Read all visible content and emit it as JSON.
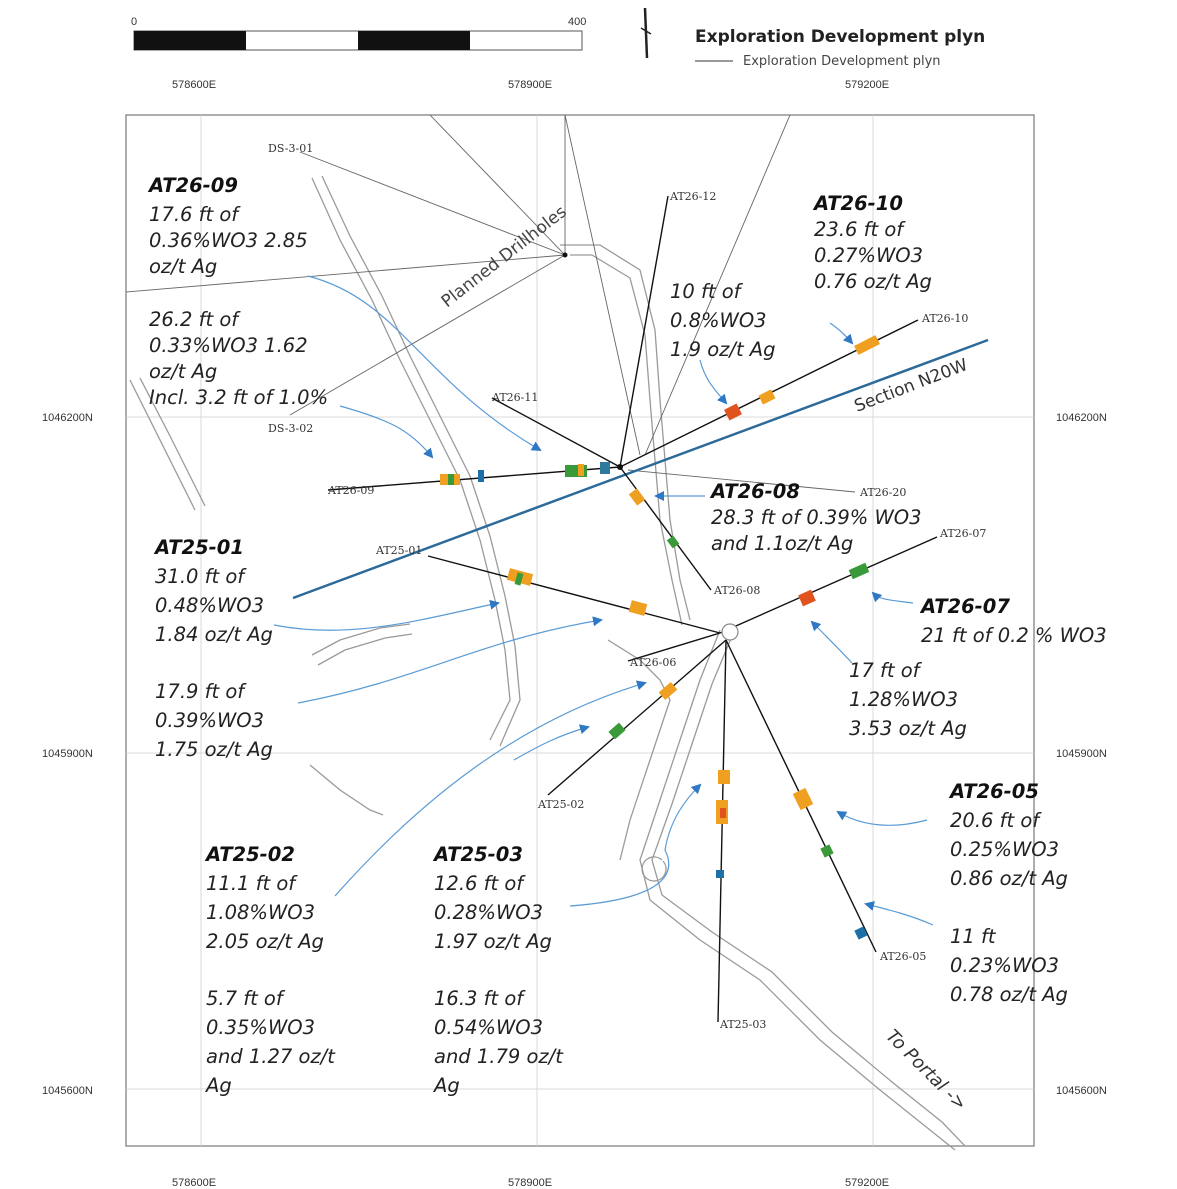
{
  "scale_bar": {
    "start": "0",
    "end": "400"
  },
  "legend": {
    "title": "Exploration Development plyn",
    "item": "Exploration Development plyn"
  },
  "coords": {
    "x_top": [
      "578600E",
      "578900E",
      "579200E"
    ],
    "x_bottom": [
      "578600E",
      "578900E",
      "579200E"
    ],
    "y_left": [
      "1046200N",
      "1045900N",
      "1045600N"
    ],
    "y_right": [
      "1046200N",
      "1045900N",
      "1045600N"
    ]
  },
  "map_labels": {
    "planned": "Planned Drillholes",
    "section": "Section N20W",
    "portal": "To Portal ->"
  },
  "holes": {
    "ds301": "DS-3-01",
    "ds302": "DS-3-02",
    "at2609": "AT26-09",
    "at2611": "AT26-11",
    "at2612": "AT26-12",
    "at2610": "AT26-10",
    "at2620": "AT26-20",
    "at2608": "AT26-08",
    "at2607": "AT26-07",
    "at2501": "AT25-01",
    "at2606": "AT26-06",
    "at2502": "AT25-02",
    "at2503": "AT25-03",
    "at2605": "AT26-05"
  },
  "annotations": {
    "at2609": {
      "title": "AT26-09",
      "lines": [
        "17.6 ft of",
        "0.36%WO3 2.85",
        "oz/t Ag"
      ]
    },
    "at2609b": {
      "lines": [
        "26.2 ft of",
        "0.33%WO3 1.62",
        "oz/t Ag",
        "Incl. 3.2 ft of 1.0%"
      ]
    },
    "at2612": {
      "lines": [
        "10 ft of",
        "0.8%WO3",
        "1.9 oz/t Ag"
      ]
    },
    "at2610": {
      "title": "AT26-10",
      "lines": [
        "23.6 ft of",
        "0.27%WO3",
        "0.76 oz/t Ag"
      ]
    },
    "at2608": {
      "title": "AT26-08",
      "lines": [
        "28.3 ft of 0.39% WO3",
        "and 1.1oz/t Ag"
      ]
    },
    "at2501": {
      "title": "AT25-01",
      "lines": [
        "31.0 ft of",
        "0.48%WO3",
        "1.84 oz/t Ag"
      ]
    },
    "at2501b": {
      "lines": [
        "17.9 ft of",
        "0.39%WO3",
        "1.75 oz/t Ag"
      ]
    },
    "at2607": {
      "title": "AT26-07",
      "lines": [
        "21 ft of 0.2 % WO3"
      ]
    },
    "at2607b": {
      "lines": [
        "17 ft of",
        "1.28%WO3",
        "3.53 oz/t Ag"
      ]
    },
    "at2605": {
      "title": "AT26-05",
      "lines": [
        "20.6 ft of",
        "0.25%WO3",
        "0.86 oz/t Ag"
      ]
    },
    "at2605b": {
      "lines": [
        "11 ft",
        "0.23%WO3",
        "0.78 oz/t Ag"
      ]
    },
    "at2502": {
      "title": "AT25-02",
      "lines": [
        "11.1 ft of",
        "1.08%WO3",
        "2.05 oz/t Ag",
        "",
        "5.7 ft of",
        "0.35%WO3",
        "and 1.27 oz/t",
        "Ag"
      ]
    },
    "at2503": {
      "title": "AT25-03",
      "lines": [
        "12.6 ft of",
        "0.28%WO3",
        "1.97 oz/t Ag",
        "",
        "16.3 ft of",
        "0.54%WO3",
        "and 1.79 oz/t",
        "Ag"
      ]
    }
  },
  "colors": {
    "section_line": "#2c6a9a",
    "arrow": "#3b7fc4",
    "workings": "#9a9a9a",
    "assay_high": "#e0531f",
    "assay_mid": "#f0a020",
    "assay_low": "#3a9a3a",
    "assay_trace": "#1e6ea8"
  }
}
